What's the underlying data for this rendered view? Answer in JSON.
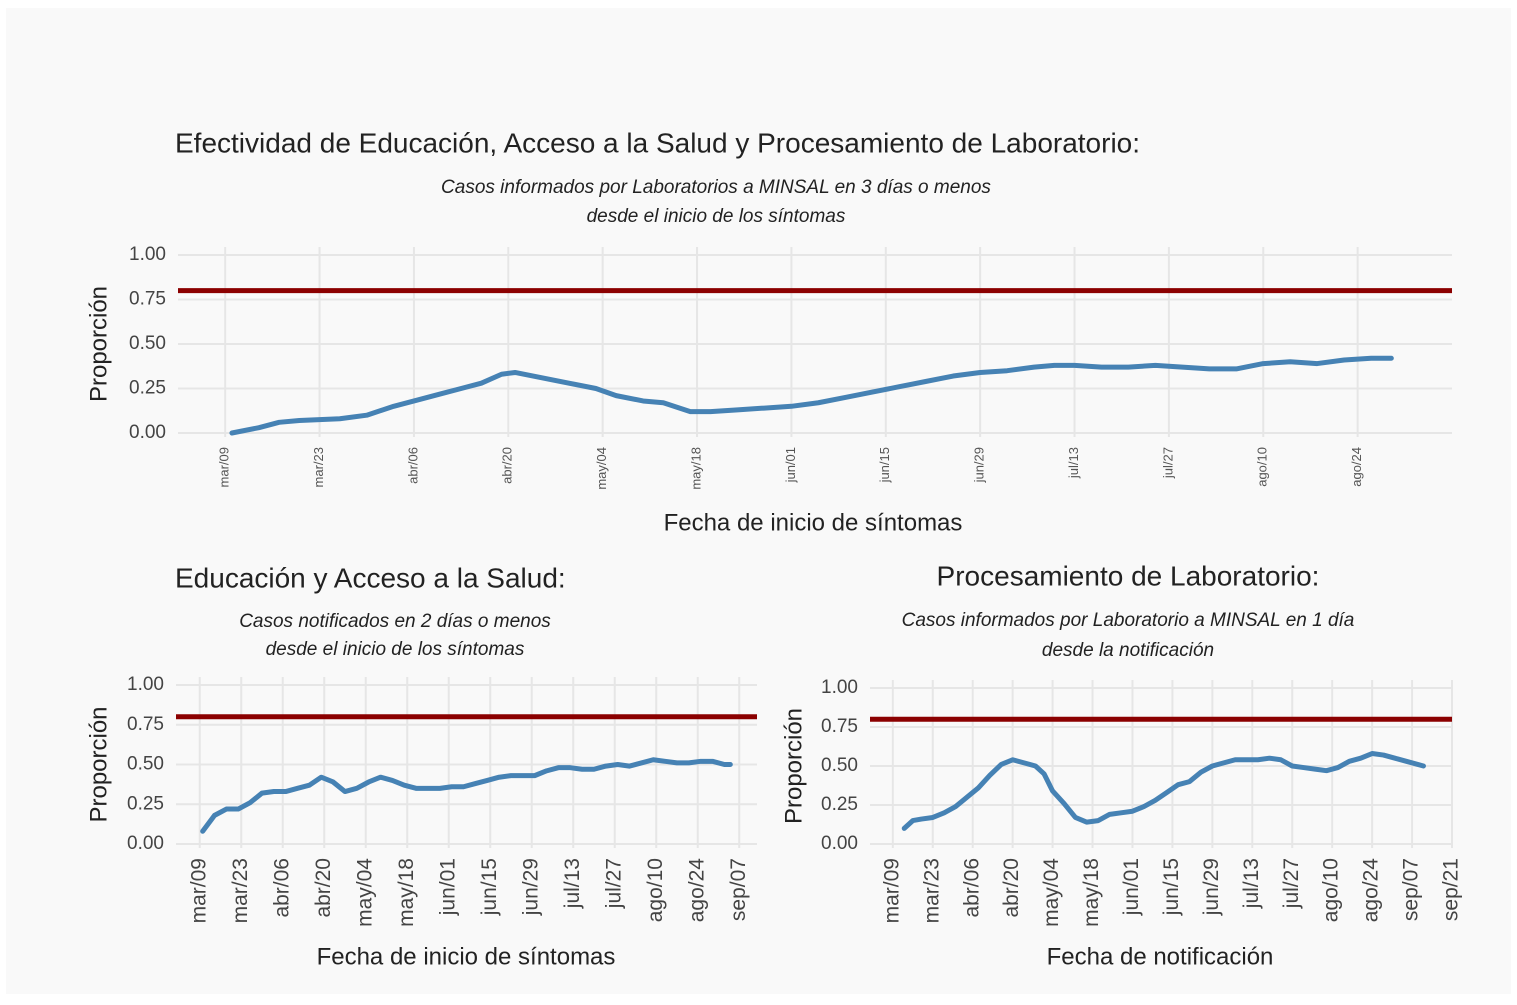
{
  "chart_data": [
    {
      "type": "line",
      "title": "Efectividad de Educación, Acceso a la Salud y Procesamiento de Laboratorio:",
      "subtitle": [
        "Casos informados por Laboratorios a MINSAL en 3 días o menos",
        "desde el inicio de los síntomas"
      ],
      "xlabel": "Fecha de inicio de síntomas",
      "ylabel": "Proporción",
      "xlim": [
        "03-02",
        "09-07"
      ],
      "xticks": [
        {
          "value": "03-09",
          "label": "mar/09"
        },
        {
          "value": "03-23",
          "label": "mar/23"
        },
        {
          "value": "04-06",
          "label": "abr/06"
        },
        {
          "value": "04-20",
          "label": "abr/20"
        },
        {
          "value": "05-04",
          "label": "may/04"
        },
        {
          "value": "05-18",
          "label": "may/18"
        },
        {
          "value": "06-01",
          "label": "jun/01"
        },
        {
          "value": "06-15",
          "label": "jun/15"
        },
        {
          "value": "06-29",
          "label": "jun/29"
        },
        {
          "value": "07-13",
          "label": "jul/13"
        },
        {
          "value": "07-27",
          "label": "jul/27"
        },
        {
          "value": "08-10",
          "label": "ago/10"
        },
        {
          "value": "08-24",
          "label": "ago/24"
        }
      ],
      "ylim": [
        0,
        1
      ],
      "yticks": [
        {
          "value": 0,
          "label": "0.00"
        },
        {
          "value": 0.25,
          "label": "0.25"
        },
        {
          "value": 0.5,
          "label": "0.50"
        },
        {
          "value": 0.75,
          "label": "0.75"
        },
        {
          "value": 1,
          "label": "1.00"
        }
      ],
      "grid": true,
      "hline": 0.8,
      "hline_color": "#8b0000",
      "x": [
        "03-10",
        "03-14",
        "03-17",
        "03-20",
        "03-26",
        "03-30",
        "04-03",
        "04-07",
        "04-10",
        "04-13",
        "04-16",
        "04-19",
        "04-21",
        "04-25",
        "04-29",
        "05-03",
        "05-06",
        "05-10",
        "05-13",
        "05-17",
        "05-20",
        "05-24",
        "05-28",
        "06-01",
        "06-05",
        "06-09",
        "06-13",
        "06-17",
        "06-21",
        "06-25",
        "06-29",
        "07-03",
        "07-07",
        "07-10",
        "07-13",
        "07-17",
        "07-21",
        "07-25",
        "07-29",
        "08-02",
        "08-06",
        "08-10",
        "08-14",
        "08-18",
        "08-22",
        "08-26",
        "08-29"
      ],
      "series": [
        {
          "color": "#4682b4",
          "values": [
            0,
            0.03,
            0.06,
            0.07,
            0.08,
            0.1,
            0.15,
            0.19,
            0.22,
            0.25,
            0.28,
            0.33,
            0.34,
            0.31,
            0.28,
            0.25,
            0.21,
            0.18,
            0.17,
            0.12,
            0.12,
            0.13,
            0.14,
            0.15,
            0.17,
            0.2,
            0.23,
            0.26,
            0.29,
            0.32,
            0.34,
            0.35,
            0.37,
            0.38,
            0.38,
            0.37,
            0.37,
            0.38,
            0.37,
            0.36,
            0.36,
            0.39,
            0.4,
            0.39,
            0.41,
            0.42,
            0.42
          ]
        }
      ]
    },
    {
      "type": "line",
      "title": "Educación y Acceso a la Salud:",
      "subtitle": [
        "Casos notificados en 2 días o menos",
        "desde el inicio de los síntomas"
      ],
      "xlabel": "Fecha de inicio de síntomas",
      "ylabel": "Proporción",
      "xlim": [
        "03-01",
        "09-13"
      ],
      "xticks": [
        {
          "value": "03-09",
          "label": "mar/09"
        },
        {
          "value": "03-23",
          "label": "mar/23"
        },
        {
          "value": "04-06",
          "label": "abr/06"
        },
        {
          "value": "04-20",
          "label": "abr/20"
        },
        {
          "value": "05-04",
          "label": "may/04"
        },
        {
          "value": "05-18",
          "label": "may/18"
        },
        {
          "value": "06-01",
          "label": "jun/01"
        },
        {
          "value": "06-15",
          "label": "jun/15"
        },
        {
          "value": "06-29",
          "label": "jun/29"
        },
        {
          "value": "07-13",
          "label": "jul/13"
        },
        {
          "value": "07-27",
          "label": "jul/27"
        },
        {
          "value": "08-10",
          "label": "ago/10"
        },
        {
          "value": "08-24",
          "label": "ago/24"
        },
        {
          "value": "09-07",
          "label": "sep/07"
        }
      ],
      "ylim": [
        0,
        1
      ],
      "yticks": [
        {
          "value": 0,
          "label": "0.00"
        },
        {
          "value": 0.25,
          "label": "0.25"
        },
        {
          "value": 0.5,
          "label": "0.50"
        },
        {
          "value": 0.75,
          "label": "0.75"
        },
        {
          "value": 1,
          "label": "1.00"
        }
      ],
      "grid": true,
      "hline": 0.8,
      "hline_color": "#8b0000",
      "x": [
        "03-10",
        "03-14",
        "03-18",
        "03-22",
        "03-26",
        "03-30",
        "04-03",
        "04-07",
        "04-11",
        "04-15",
        "04-19",
        "04-23",
        "04-27",
        "05-01",
        "05-05",
        "05-09",
        "05-13",
        "05-17",
        "05-21",
        "05-25",
        "05-29",
        "06-02",
        "06-06",
        "06-10",
        "06-14",
        "06-18",
        "06-22",
        "06-26",
        "06-30",
        "07-04",
        "07-08",
        "07-12",
        "07-16",
        "07-20",
        "07-24",
        "07-28",
        "08-01",
        "08-05",
        "08-09",
        "08-13",
        "08-17",
        "08-21",
        "08-25",
        "08-29",
        "09-02",
        "09-04"
      ],
      "series": [
        {
          "color": "#4682b4",
          "values": [
            0.08,
            0.18,
            0.22,
            0.22,
            0.26,
            0.32,
            0.33,
            0.33,
            0.35,
            0.37,
            0.42,
            0.39,
            0.33,
            0.35,
            0.39,
            0.42,
            0.4,
            0.37,
            0.35,
            0.35,
            0.35,
            0.36,
            0.36,
            0.38,
            0.4,
            0.42,
            0.43,
            0.43,
            0.43,
            0.46,
            0.48,
            0.48,
            0.47,
            0.47,
            0.49,
            0.5,
            0.49,
            0.51,
            0.53,
            0.52,
            0.51,
            0.51,
            0.52,
            0.52,
            0.5,
            0.5
          ]
        }
      ]
    },
    {
      "type": "line",
      "title": "Procesamiento de Laboratorio:",
      "subtitle": [
        "Casos informados por Laboratorio a MINSAL en 1 día",
        "desde la notificación"
      ],
      "xlabel": "Fecha de notificación",
      "ylabel": "Proporción",
      "xlim": [
        "03-01",
        "09-21"
      ],
      "xticks": [
        {
          "value": "03-09",
          "label": "mar/09"
        },
        {
          "value": "03-23",
          "label": "mar/23"
        },
        {
          "value": "04-06",
          "label": "abr/06"
        },
        {
          "value": "04-20",
          "label": "abr/20"
        },
        {
          "value": "05-04",
          "label": "may/04"
        },
        {
          "value": "05-18",
          "label": "may/18"
        },
        {
          "value": "06-01",
          "label": "jun/01"
        },
        {
          "value": "06-15",
          "label": "jun/15"
        },
        {
          "value": "06-29",
          "label": "jun/29"
        },
        {
          "value": "07-13",
          "label": "jul/13"
        },
        {
          "value": "07-27",
          "label": "jul/27"
        },
        {
          "value": "08-10",
          "label": "ago/10"
        },
        {
          "value": "08-24",
          "label": "ago/24"
        },
        {
          "value": "09-07",
          "label": "sep/07"
        },
        {
          "value": "09-21",
          "label": "sep/21"
        }
      ],
      "ylim": [
        0,
        1
      ],
      "yticks": [
        {
          "value": 0,
          "label": "0.00"
        },
        {
          "value": 0.25,
          "label": "0.25"
        },
        {
          "value": 0.5,
          "label": "0.50"
        },
        {
          "value": 0.75,
          "label": "0.75"
        },
        {
          "value": 1,
          "label": "1.00"
        }
      ],
      "grid": true,
      "hline": 0.8,
      "hline_color": "#8b0000",
      "x": [
        "03-13",
        "03-16",
        "03-19",
        "03-23",
        "03-27",
        "03-31",
        "04-04",
        "04-08",
        "04-12",
        "04-16",
        "04-20",
        "04-24",
        "04-28",
        "05-01",
        "05-04",
        "05-08",
        "05-12",
        "05-16",
        "05-20",
        "05-24",
        "05-28",
        "06-01",
        "06-05",
        "06-09",
        "06-13",
        "06-17",
        "06-21",
        "06-25",
        "06-29",
        "07-03",
        "07-07",
        "07-11",
        "07-15",
        "07-19",
        "07-23",
        "07-27",
        "07-31",
        "08-04",
        "08-08",
        "08-12",
        "08-16",
        "08-20",
        "08-24",
        "08-28",
        "09-01",
        "09-05",
        "09-11"
      ],
      "series": [
        {
          "color": "#4682b4",
          "values": [
            0.1,
            0.15,
            0.16,
            0.17,
            0.2,
            0.24,
            0.3,
            0.36,
            0.44,
            0.51,
            0.54,
            0.52,
            0.5,
            0.45,
            0.34,
            0.26,
            0.17,
            0.14,
            0.15,
            0.19,
            0.2,
            0.21,
            0.24,
            0.28,
            0.33,
            0.38,
            0.4,
            0.46,
            0.5,
            0.52,
            0.54,
            0.54,
            0.54,
            0.55,
            0.54,
            0.5,
            0.49,
            0.48,
            0.47,
            0.49,
            0.53,
            0.55,
            0.58,
            0.57,
            0.55,
            0.53,
            0.5
          ]
        }
      ]
    }
  ]
}
